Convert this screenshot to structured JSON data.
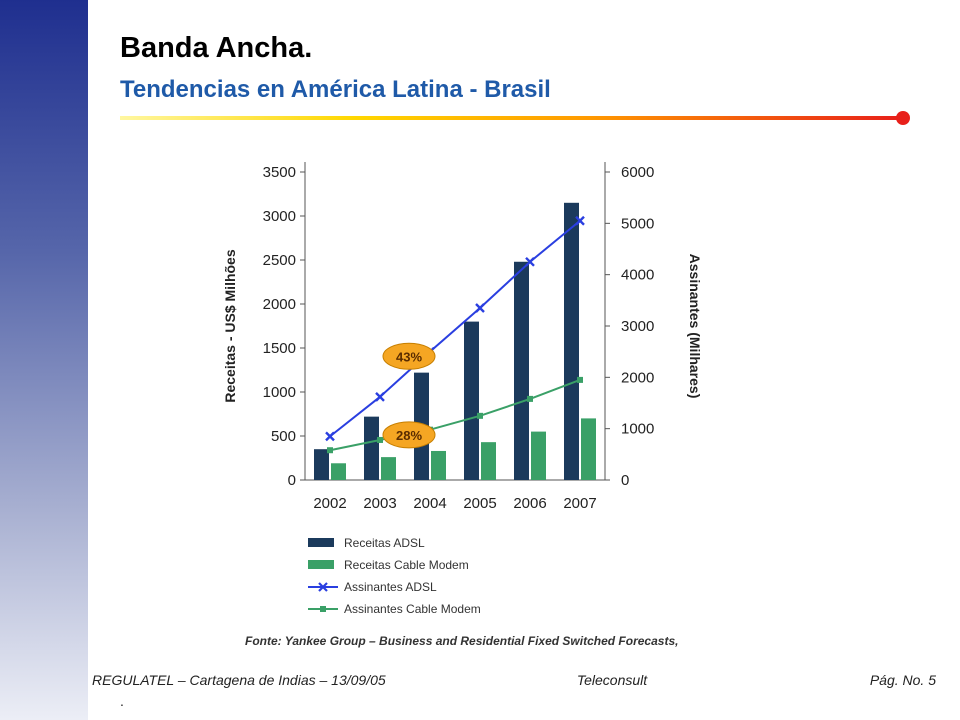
{
  "slide": {
    "title": "Banda Ancha.",
    "subtitle": "Tendencias en América Latina - Brasil"
  },
  "footer": {
    "left": "REGULATEL – Cartagena de Indias – 13/09/05",
    "center": "Teleconsult",
    "right": "Pág. No. 5",
    "mark": "."
  },
  "colors": {
    "sidebar_top": "#1f2f8f",
    "subtitle": "#1f5aa8",
    "bar_adsl": "#1b3a5c",
    "bar_cable": "#3aa067",
    "line_adsl": "#2a3fe0",
    "line_cable": "#3aa067",
    "bubble": "#f5a623"
  },
  "chart_data": {
    "type": "bar",
    "categories": [
      "2002",
      "2003",
      "2004",
      "2005",
      "2006",
      "2007"
    ],
    "y_left_label": "Receitas - US$ Milhões",
    "y_right_label": "Assinantes (Milhares)",
    "y_left_ticks": [
      "0",
      "500",
      "1000",
      "1500",
      "2000",
      "2500",
      "3000",
      "3500"
    ],
    "y_right_ticks": [
      "0",
      "1000",
      "2000",
      "3000",
      "4000",
      "5000",
      "6000"
    ],
    "ylim_left": [
      0,
      3500
    ],
    "ylim_right": [
      0,
      6000
    ],
    "series": [
      {
        "name": "Receitas ADSL",
        "kind": "bar",
        "axis": "left",
        "values": [
          350,
          720,
          1220,
          1800,
          2480,
          3150
        ]
      },
      {
        "name": "Receitas Cable Modem",
        "kind": "bar",
        "axis": "left",
        "values": [
          190,
          260,
          330,
          430,
          550,
          700
        ]
      },
      {
        "name": "Assinantes ADSL",
        "kind": "line",
        "axis": "right",
        "values": [
          850,
          1620,
          2500,
          3350,
          4250,
          5050
        ]
      },
      {
        "name": "Assinantes Cable Modem",
        "kind": "line",
        "axis": "right",
        "values": [
          580,
          780,
          980,
          1250,
          1580,
          1950
        ]
      }
    ],
    "annotations": [
      {
        "text": "43%",
        "series": "Assinantes ADSL"
      },
      {
        "text": "28%",
        "series": "Assinantes Cable Modem"
      }
    ],
    "source": "Fonte: Yankee Group – Business and Residential Fixed Switched Forecasts,"
  }
}
